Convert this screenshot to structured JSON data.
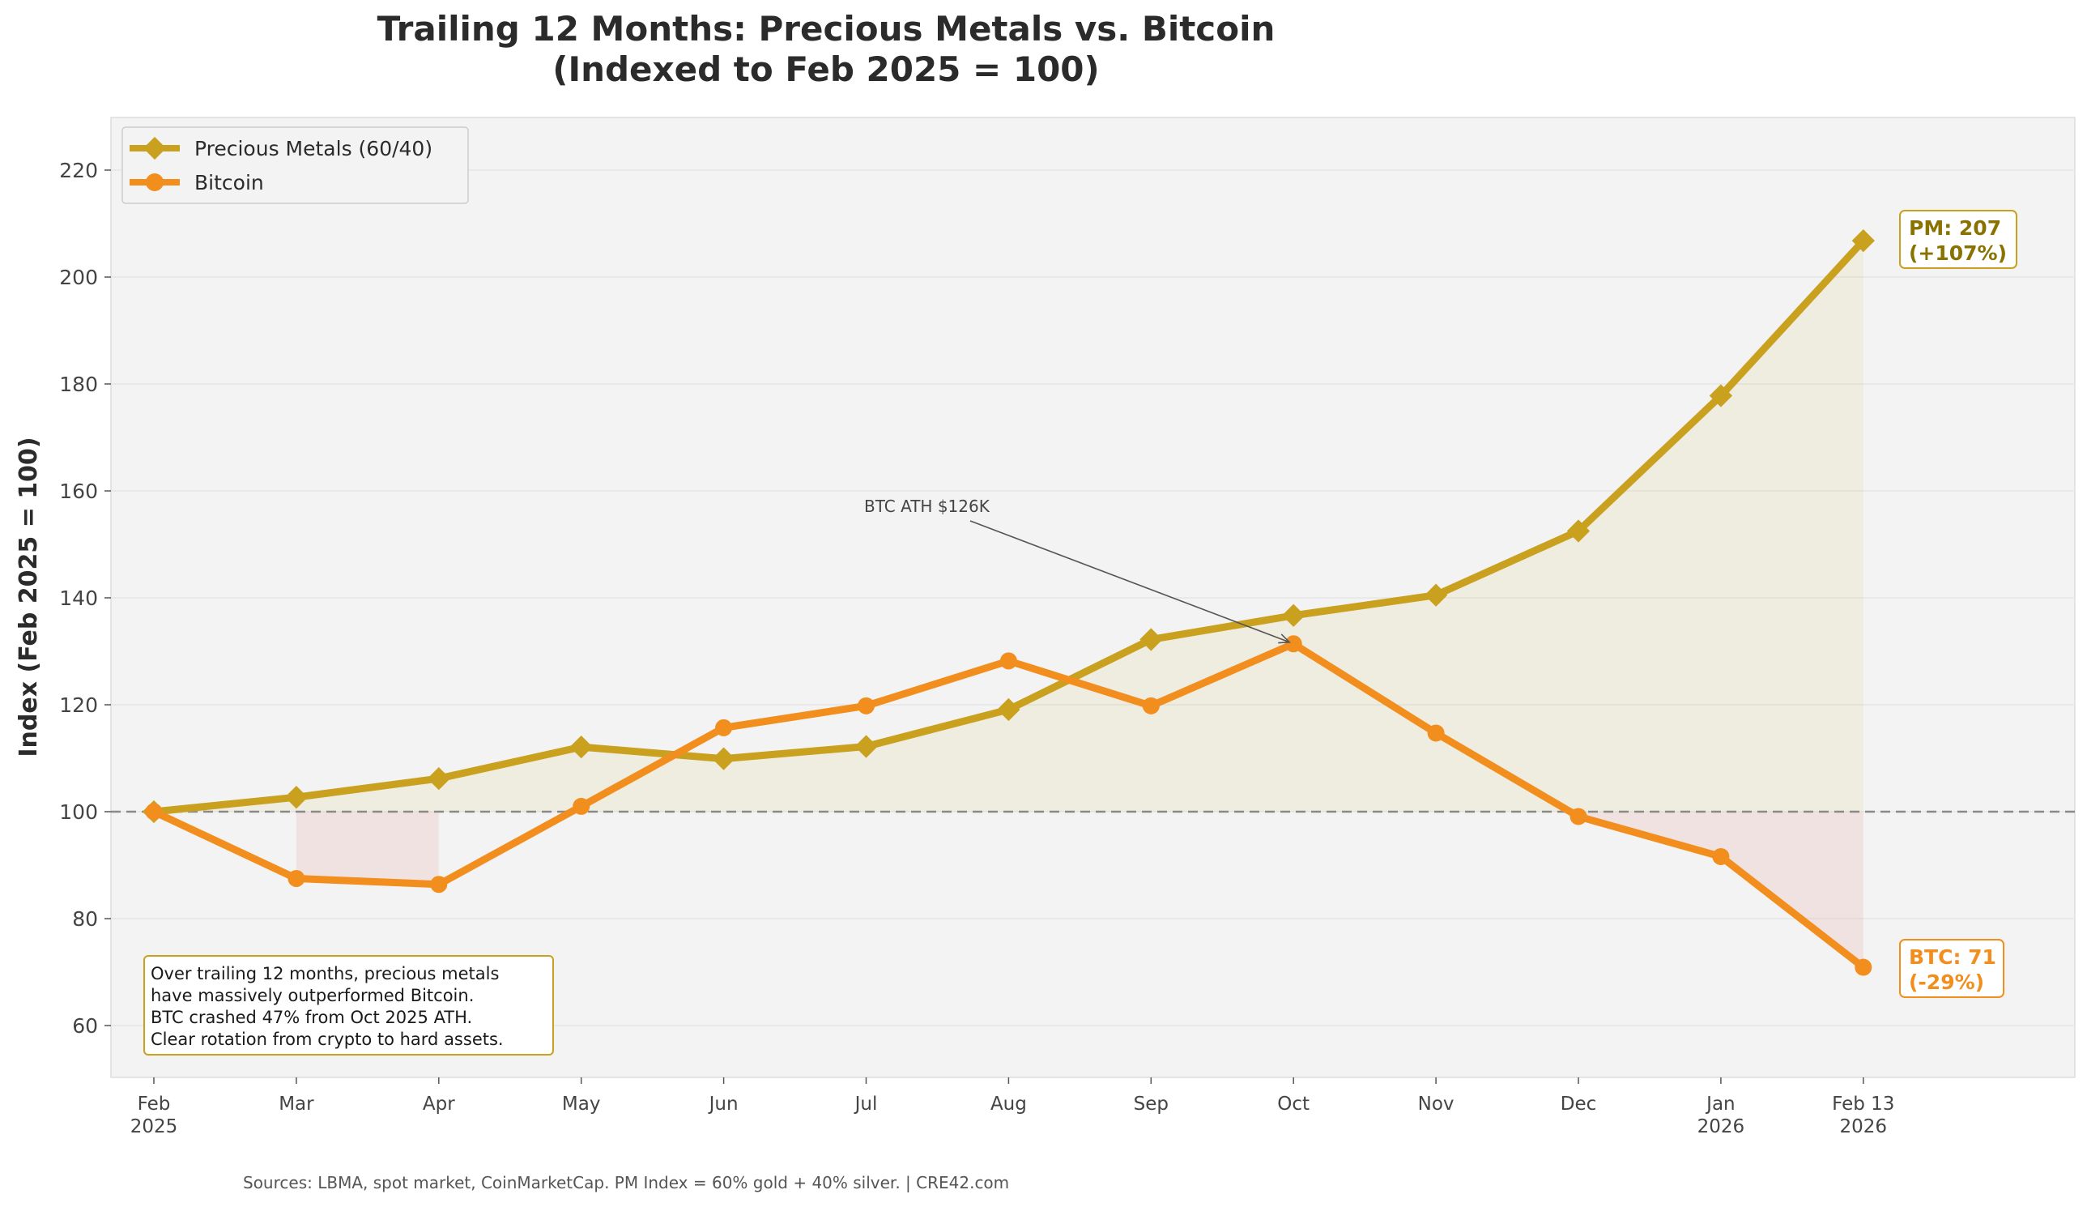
{
  "chart_data": {
    "type": "line",
    "title": "Trailing 12 Months: Precious Metals vs. Bitcoin",
    "subtitle": "(Indexed to Feb 2025 = 100)",
    "xlabel": "",
    "ylabel": "Index (Feb 2025 = 100)",
    "ylim": [
      50,
      230
    ],
    "yticks": [
      60,
      80,
      100,
      120,
      140,
      160,
      180,
      200,
      220
    ],
    "grid": true,
    "legend_position": "top-left",
    "baseline": 100,
    "categories": [
      [
        "Feb",
        "2025"
      ],
      [
        "Mar"
      ],
      [
        "Apr"
      ],
      [
        "May"
      ],
      [
        "Jun"
      ],
      [
        "Jul"
      ],
      [
        "Aug"
      ],
      [
        "Sep"
      ],
      [
        "Oct"
      ],
      [
        "Nov"
      ],
      [
        "Dec"
      ],
      [
        "Jan",
        "2026"
      ],
      [
        "Feb 13",
        "2026"
      ]
    ],
    "series": [
      {
        "name": "Precious Metals (60/40)",
        "color": "#c9a11e",
        "marker": "diamond",
        "values": [
          100,
          102.7,
          106.2,
          112.1,
          109.9,
          112.2,
          119.1,
          132.2,
          136.7,
          140.5,
          152.5,
          177.8,
          206.8
        ]
      },
      {
        "name": "Bitcoin",
        "color": "#f28e1e",
        "marker": "circle",
        "values": [
          100,
          87.5,
          86.4,
          101,
          115.7,
          119.8,
          128.2,
          119.8,
          131.4,
          114.7,
          99.1,
          91.6,
          70.9
        ]
      }
    ],
    "annotations": {
      "ath": {
        "text": "BTC ATH $126K",
        "target_index": 8,
        "target_value": 131.4
      },
      "pm_end": {
        "line1": "PM: 207",
        "line2": "(+107%)",
        "color": "#8a7200"
      },
      "btc_end": {
        "line1": "BTC: 71",
        "line2": "(-29%)",
        "color": "#f28e1e"
      },
      "note": [
        "Over trailing 12 months, precious metals",
        "have massively outperformed Bitcoin.",
        "BTC crashed 47% from Oct 2025 ATH.",
        "Clear rotation from crypto to hard assets."
      ]
    },
    "footer": "Sources: LBMA, spot market, CoinMarketCap. PM Index = 60% gold + 40% silver.  |  CRE42.com"
  }
}
